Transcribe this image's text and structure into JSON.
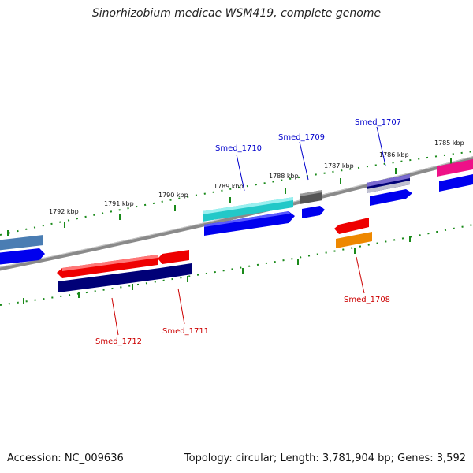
{
  "title": "Sinorhizobium medicae WSM419, complete genome",
  "footer": {
    "accession": "Accession: NC_009636",
    "summary": "Topology: circular; Length: 3,781,904 bp; Genes: 3,592"
  },
  "tick_labels": [
    "1792 kbp",
    "1791 kbp",
    "1790 kbp",
    "1789 kbp",
    "1788 kbp",
    "1787 kbp",
    "1786 kbp",
    "1785 kbp"
  ],
  "gene_labels": {
    "plus": [
      "Smed_1710",
      "Smed_1709",
      "Smed_1707"
    ],
    "minus": [
      "Smed_1712",
      "Smed_1711",
      "Smed_1708"
    ]
  },
  "colors": {
    "backbone": "#808080",
    "cds": "#0000ee",
    "tick": "#008000",
    "feature_cyan": "#22cccc",
    "feature_red": "#ee0000",
    "feature_navy": "#000077",
    "feature_orange": "#ee8800",
    "feature_gray": "#555555",
    "feature_slate": "#4477aa",
    "feature_purple": "#6a5acd",
    "feature_pink": "#ee1188"
  }
}
